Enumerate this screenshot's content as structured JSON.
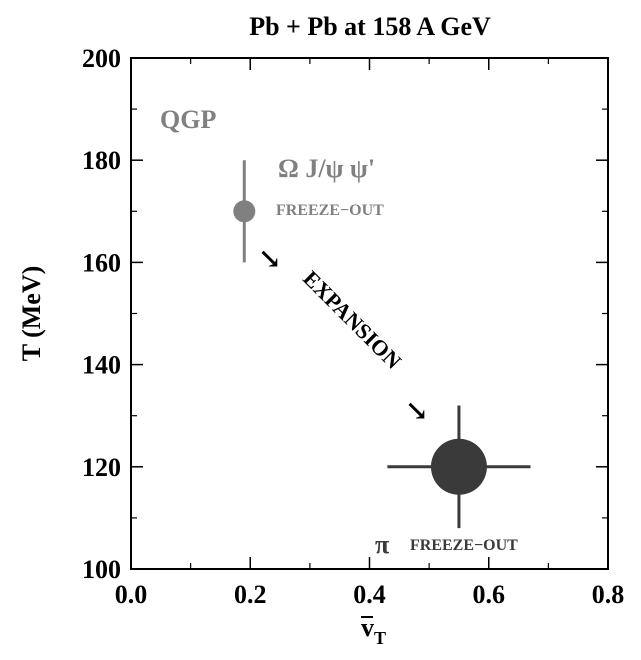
{
  "chart_data": {
    "type": "scatter",
    "title": "Pb + Pb at 158 A GeV",
    "xlabel": "v",
    "xlabel_sub": "T",
    "ylabel": "T (MeV)",
    "xlim": [
      0.0,
      0.8
    ],
    "ylim": [
      100,
      200
    ],
    "x_ticks": [
      "0.0",
      "0.2",
      "0.4",
      "0.6",
      "0.8"
    ],
    "y_ticks": [
      "100",
      "120",
      "140",
      "160",
      "180",
      "200"
    ],
    "grid": false,
    "points": [
      {
        "label": "Ω J/ψ ψ' FREEZE−OUT",
        "x": 0.19,
        "y": 170,
        "x_err": 0.0,
        "y_err": 10,
        "color": "#808080",
        "marker_size": "small"
      },
      {
        "label": "π FREEZE−OUT",
        "x": 0.55,
        "y": 120,
        "x_err": 0.12,
        "y_err": 12,
        "color": "#3a3a3a",
        "marker_size": "large"
      }
    ],
    "annotations": {
      "qgp": "QGP",
      "early_species": "Ω  J/ψ  ψ'",
      "early_freezeout": "FREEZE−OUT",
      "late_species": "π",
      "late_freezeout": "FREEZE−OUT",
      "expansion": "EXPANSION",
      "arrow_glyph": "↘"
    }
  }
}
